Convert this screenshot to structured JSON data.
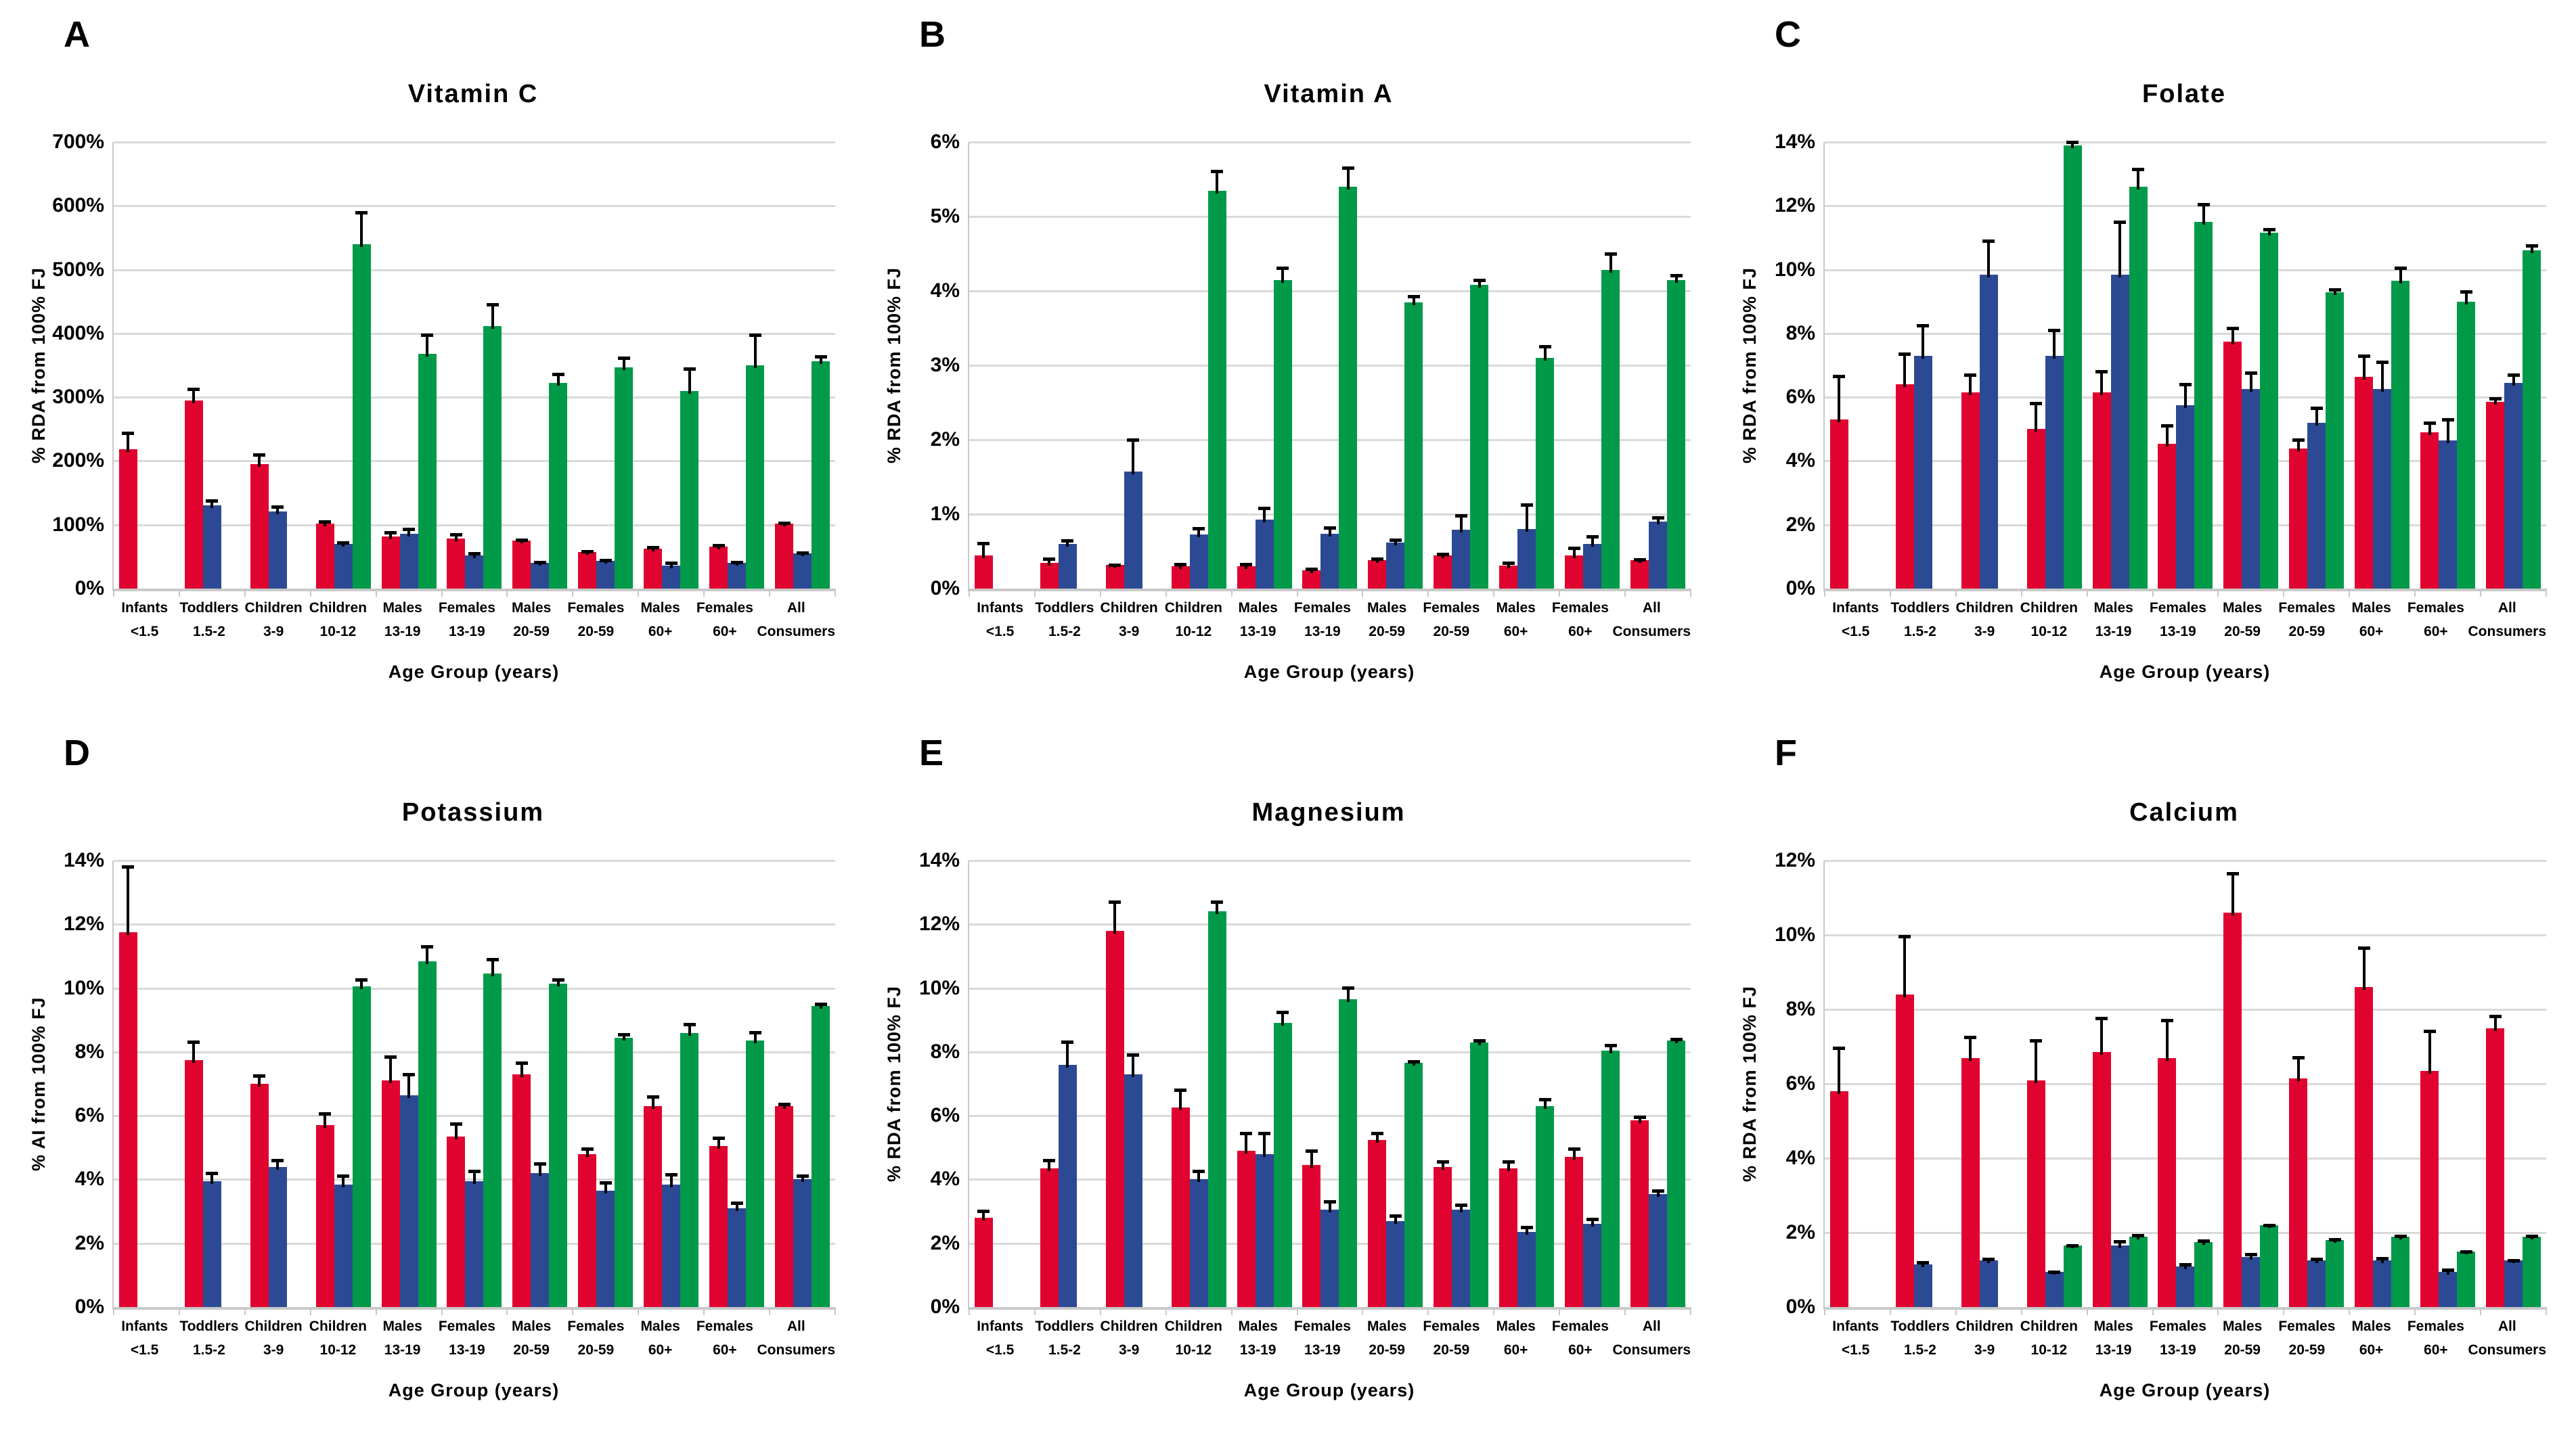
{
  "figure_colors": {
    "red": "#E0032F",
    "blue": "#2C4A94",
    "green": "#009A49",
    "grid": "#D9D9D9",
    "axis": "#C9C9C9",
    "error": "#000000"
  },
  "categories": [
    {
      "line1": "Infants",
      "line2": "<1.5"
    },
    {
      "line1": "Toddlers",
      "line2": "1.5-2"
    },
    {
      "line1": "Children",
      "line2": "3-9"
    },
    {
      "line1": "Children",
      "line2": "10-12"
    },
    {
      "line1": "Males",
      "line2": "13-19"
    },
    {
      "line1": "Females",
      "line2": "13-19"
    },
    {
      "line1": "Males",
      "line2": "20-59"
    },
    {
      "line1": "Females",
      "line2": "20-59"
    },
    {
      "line1": "Males",
      "line2": "60+"
    },
    {
      "line1": "Females",
      "line2": "60+"
    },
    {
      "line1": "All",
      "line2": "Consumers"
    }
  ],
  "chart_data": [
    {
      "panel": "A",
      "type": "bar",
      "title": "Vitamin C",
      "ylabel": "% RDA from 100% FJ",
      "xlabel": "Age Group (years)",
      "ylim": [
        0,
        700
      ],
      "ytick_step": 100,
      "ytick_suffix": "%",
      "grid": true,
      "legend": "none",
      "categories": [
        "Infants <1.5",
        "Toddlers 1.5-2",
        "Children 3-9",
        "Children 10-12",
        "Males 13-19",
        "Females 13-19",
        "Males 20-59",
        "Females 20-59",
        "Males 60+",
        "Females 60+",
        "All Consumers"
      ],
      "series": [
        {
          "name": "red",
          "color": "#E0032F",
          "values": [
            218,
            295,
            195,
            102,
            82,
            79,
            75,
            57,
            63,
            66,
            102
          ],
          "errors": [
            28,
            20,
            17,
            5,
            8,
            8,
            4,
            4,
            4,
            4,
            3
          ]
        },
        {
          "name": "blue",
          "color": "#2C4A94",
          "values": [
            null,
            130,
            121,
            70,
            86,
            52,
            40,
            43,
            36,
            40,
            55
          ],
          "errors": [
            null,
            10,
            10,
            4,
            10,
            5,
            4,
            4,
            6,
            4,
            3
          ]
        },
        {
          "name": "green",
          "color": "#009A49",
          "values": [
            null,
            null,
            null,
            540,
            368,
            412,
            322,
            347,
            310,
            350,
            356
          ],
          "errors": [
            null,
            null,
            null,
            52,
            32,
            36,
            16,
            17,
            37,
            50,
            10
          ]
        }
      ]
    },
    {
      "panel": "B",
      "type": "bar",
      "title": "Vitamin A",
      "ylabel": "% RDA from 100% FJ",
      "xlabel": "Age Group (years)",
      "ylim": [
        0,
        6
      ],
      "ytick_step": 1,
      "ytick_suffix": "%",
      "grid": true,
      "legend": "none",
      "categories": [
        "Infants <1.5",
        "Toddlers 1.5-2",
        "Children 3-9",
        "Children 10-12",
        "Males 13-19",
        "Females 13-19",
        "Males 20-59",
        "Females 20-59",
        "Males 60+",
        "Females 60+",
        "All Consumers"
      ],
      "series": [
        {
          "name": "red",
          "color": "#E0032F",
          "values": [
            0.45,
            0.35,
            0.32,
            0.3,
            0.3,
            0.25,
            0.38,
            0.45,
            0.31,
            0.45,
            0.38
          ],
          "errors": [
            0.18,
            0.07,
            0.02,
            0.05,
            0.05,
            0.03,
            0.04,
            0.03,
            0.05,
            0.11,
            0.03
          ]
        },
        {
          "name": "blue",
          "color": "#2C4A94",
          "values": [
            null,
            0.6,
            1.57,
            0.73,
            0.93,
            0.74,
            0.62,
            0.79,
            0.8,
            0.6,
            0.9
          ],
          "errors": [
            null,
            0.06,
            0.45,
            0.1,
            0.17,
            0.1,
            0.05,
            0.21,
            0.35,
            0.12,
            0.07
          ]
        },
        {
          "name": "green",
          "color": "#009A49",
          "values": [
            null,
            null,
            null,
            5.35,
            4.15,
            5.4,
            3.85,
            4.08,
            3.1,
            4.28,
            4.15
          ],
          "errors": [
            null,
            null,
            null,
            0.28,
            0.18,
            0.27,
            0.1,
            0.08,
            0.17,
            0.24,
            0.08
          ]
        }
      ]
    },
    {
      "panel": "C",
      "type": "bar",
      "title": "Folate",
      "ylabel": "% RDA from 100% FJ",
      "xlabel": "Age Group (years)",
      "ylim": [
        0,
        14
      ],
      "ytick_step": 2,
      "ytick_suffix": "%",
      "grid": true,
      "legend": "none",
      "categories": [
        "Infants <1.5",
        "Toddlers 1.5-2",
        "Children 3-9",
        "Children 10-12",
        "Males 13-19",
        "Females 13-19",
        "Males 20-59",
        "Females 20-59",
        "Males 60+",
        "Females 60+",
        "All Consumers"
      ],
      "series": [
        {
          "name": "red",
          "color": "#E0032F",
          "values": [
            5.3,
            6.4,
            6.15,
            5.0,
            6.15,
            4.55,
            7.75,
            4.4,
            6.65,
            4.9,
            5.85
          ],
          "errors": [
            1.4,
            1.0,
            0.6,
            0.85,
            0.7,
            0.6,
            0.45,
            0.3,
            0.7,
            0.35,
            0.15
          ]
        },
        {
          "name": "blue",
          "color": "#2C4A94",
          "values": [
            null,
            7.3,
            9.85,
            7.3,
            9.85,
            5.75,
            6.25,
            5.2,
            6.25,
            4.65,
            6.45
          ],
          "errors": [
            null,
            1.0,
            1.1,
            0.85,
            1.7,
            0.7,
            0.55,
            0.5,
            0.9,
            0.7,
            0.3
          ]
        },
        {
          "name": "green",
          "color": "#009A49",
          "values": [
            null,
            null,
            null,
            13.9,
            12.6,
            11.5,
            11.15,
            9.3,
            9.65,
            9.0,
            10.6
          ],
          "errors": [
            null,
            null,
            null,
            0.15,
            0.6,
            0.6,
            0.15,
            0.12,
            0.45,
            0.35,
            0.2
          ]
        }
      ]
    },
    {
      "panel": "D",
      "type": "bar",
      "title": "Potassium",
      "ylabel": "% AI from 100% FJ",
      "xlabel": "Age Group (years)",
      "ylim": [
        0,
        14
      ],
      "ytick_step": 2,
      "ytick_suffix": "%",
      "grid": true,
      "legend": "none",
      "categories": [
        "Infants <1.5",
        "Toddlers 1.5-2",
        "Children 3-9",
        "Children 10-12",
        "Males 13-19",
        "Females 13-19",
        "Males 20-59",
        "Females 20-59",
        "Males 60+",
        "Females 60+",
        "All Consumers"
      ],
      "series": [
        {
          "name": "red",
          "color": "#E0032F",
          "values": [
            11.75,
            7.75,
            7.0,
            5.7,
            7.1,
            5.35,
            7.3,
            4.8,
            6.3,
            5.05,
            6.3
          ],
          "errors": [
            2.1,
            0.6,
            0.3,
            0.4,
            0.8,
            0.45,
            0.4,
            0.2,
            0.35,
            0.3,
            0.1
          ]
        },
        {
          "name": "blue",
          "color": "#2C4A94",
          "values": [
            null,
            3.95,
            4.4,
            3.85,
            6.65,
            3.95,
            4.2,
            3.65,
            3.85,
            3.1,
            4.0
          ],
          "errors": [
            null,
            0.3,
            0.25,
            0.3,
            0.7,
            0.35,
            0.35,
            0.3,
            0.35,
            0.2,
            0.15
          ]
        },
        {
          "name": "green",
          "color": "#009A49",
          "values": [
            null,
            null,
            null,
            10.05,
            10.85,
            10.45,
            10.15,
            8.45,
            8.6,
            8.35,
            9.45
          ],
          "errors": [
            null,
            null,
            null,
            0.25,
            0.5,
            0.5,
            0.15,
            0.15,
            0.3,
            0.3,
            0.1
          ]
        }
      ]
    },
    {
      "panel": "E",
      "type": "bar",
      "title": "Magnesium",
      "ylabel": "% RDA from 100% FJ",
      "xlabel": "Age Group (years)",
      "ylim": [
        0,
        14
      ],
      "ytick_step": 2,
      "ytick_suffix": "%",
      "grid": true,
      "legend": "none",
      "categories": [
        "Infants <1.5",
        "Toddlers 1.5-2",
        "Children 3-9",
        "Children 10-12",
        "Males 13-19",
        "Females 13-19",
        "Males 20-59",
        "Females 20-59",
        "Males 60+",
        "Females 60+",
        "All Consumers"
      ],
      "series": [
        {
          "name": "red",
          "color": "#E0032F",
          "values": [
            2.8,
            4.35,
            11.8,
            6.25,
            4.9,
            4.45,
            5.25,
            4.4,
            4.35,
            4.7,
            5.85
          ],
          "errors": [
            0.25,
            0.3,
            0.95,
            0.6,
            0.6,
            0.5,
            0.25,
            0.2,
            0.25,
            0.3,
            0.15
          ]
        },
        {
          "name": "blue",
          "color": "#2C4A94",
          "values": [
            null,
            7.6,
            7.3,
            4.0,
            4.8,
            3.05,
            2.7,
            3.05,
            2.35,
            2.6,
            3.55
          ],
          "errors": [
            null,
            0.75,
            0.65,
            0.3,
            0.7,
            0.3,
            0.2,
            0.2,
            0.2,
            0.2,
            0.15
          ]
        },
        {
          "name": "green",
          "color": "#009A49",
          "values": [
            null,
            null,
            null,
            12.4,
            8.9,
            9.65,
            7.65,
            8.3,
            6.3,
            8.05,
            8.35
          ],
          "errors": [
            null,
            null,
            null,
            0.35,
            0.4,
            0.4,
            0.1,
            0.1,
            0.25,
            0.2,
            0.1
          ]
        }
      ]
    },
    {
      "panel": "F",
      "type": "bar",
      "title": "Calcium",
      "ylabel": "% RDA from 100% FJ",
      "xlabel": "Age Group (years)",
      "ylim": [
        0,
        12
      ],
      "ytick_step": 2,
      "ytick_suffix": "%",
      "grid": true,
      "legend": "none",
      "categories": [
        "Infants <1.5",
        "Toddlers 1.5-2",
        "Children 3-9",
        "Children 10-12",
        "Males 13-19",
        "Females 13-19",
        "Males 20-59",
        "Females 20-59",
        "Males 60+",
        "Females 60+",
        "All Consumers"
      ],
      "series": [
        {
          "name": "red",
          "color": "#E0032F",
          "values": [
            5.8,
            8.4,
            6.7,
            6.1,
            6.85,
            6.7,
            10.6,
            6.15,
            8.6,
            6.35,
            7.5
          ],
          "errors": [
            1.2,
            1.6,
            0.6,
            1.1,
            0.95,
            1.05,
            1.1,
            0.6,
            1.1,
            1.1,
            0.35
          ]
        },
        {
          "name": "blue",
          "color": "#2C4A94",
          "values": [
            null,
            1.15,
            1.25,
            0.95,
            1.65,
            1.1,
            1.35,
            1.25,
            1.25,
            0.95,
            1.25
          ],
          "errors": [
            null,
            0.08,
            0.08,
            0.04,
            0.15,
            0.08,
            0.1,
            0.07,
            0.1,
            0.08,
            0.05
          ]
        },
        {
          "name": "green",
          "color": "#009A49",
          "values": [
            null,
            null,
            null,
            1.65,
            1.9,
            1.75,
            2.2,
            1.8,
            1.9,
            1.5,
            1.9
          ],
          "errors": [
            null,
            null,
            null,
            0.04,
            0.07,
            0.06,
            0.03,
            0.05,
            0.05,
            0.03,
            0.04
          ]
        }
      ]
    }
  ]
}
